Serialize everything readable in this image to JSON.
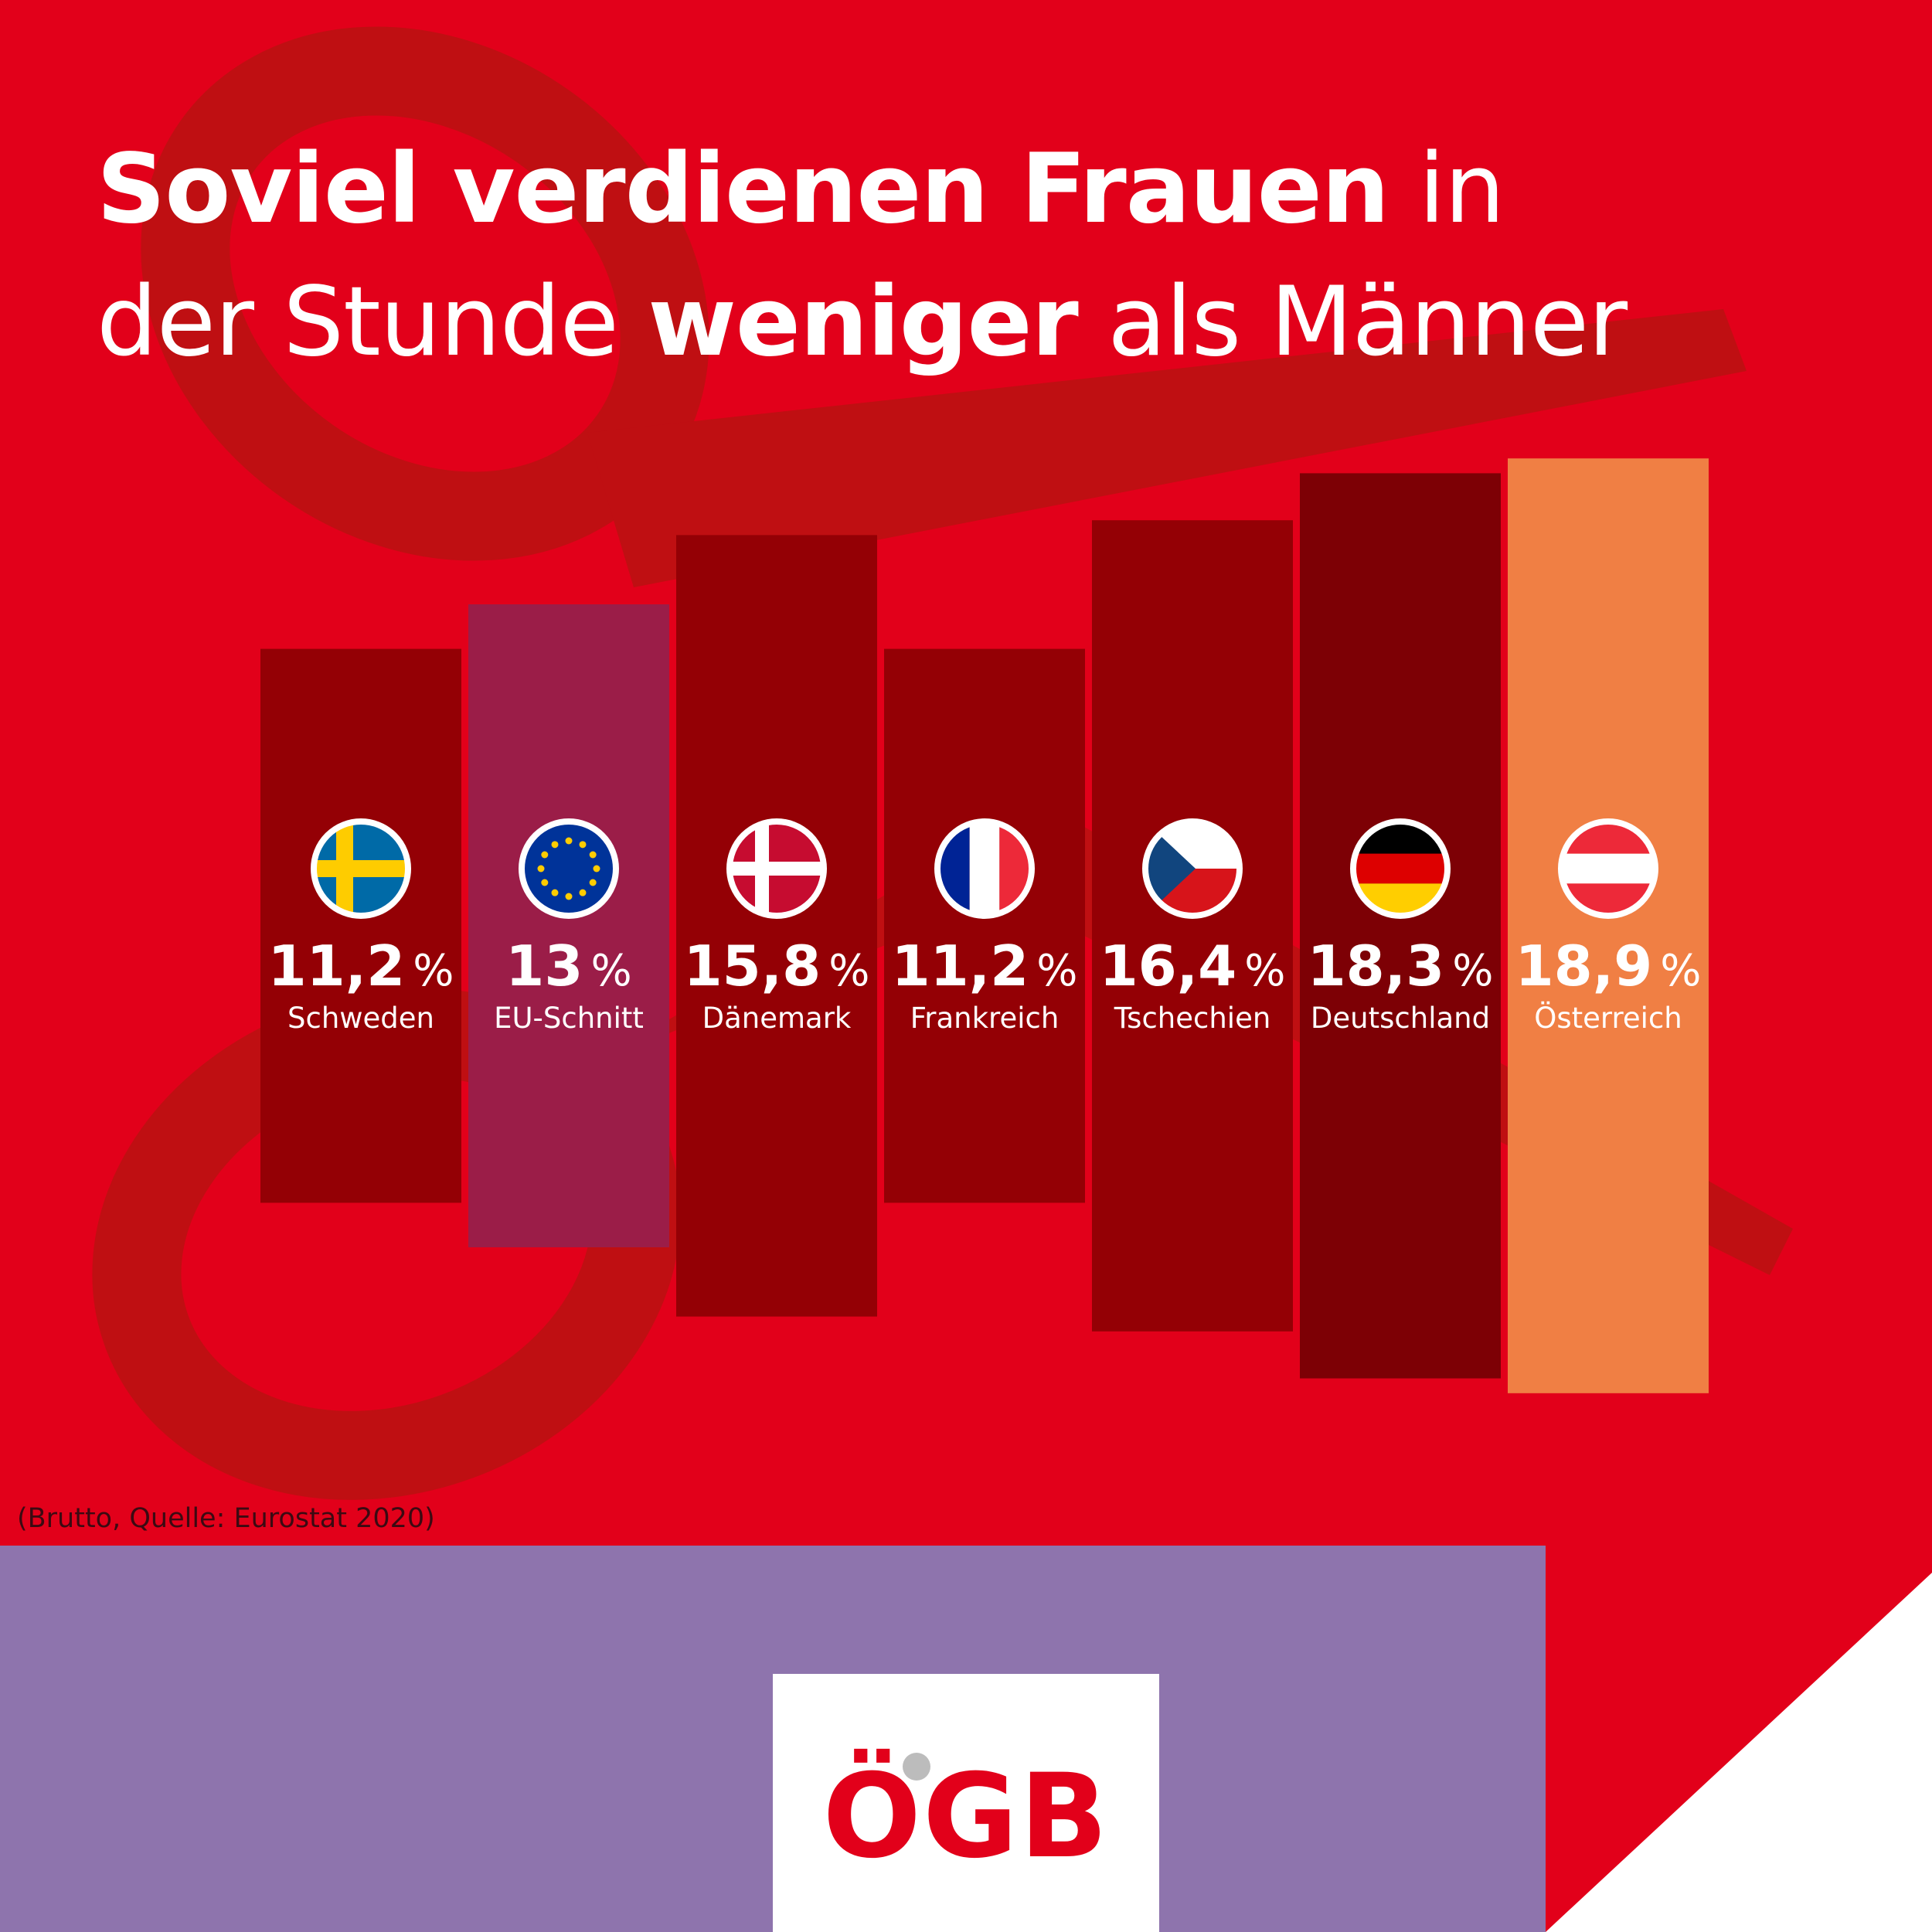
{
  "title": {
    "line1_bold": "Soviel verdienen Frauen",
    "line1_light": "in",
    "line2_light_a": "der Stunde",
    "line2_bold": "weniger",
    "line2_light_b": "als Männer"
  },
  "chart_data": {
    "type": "bar",
    "title": "Soviel verdienen Frauen in der Stunde weniger als Männer",
    "unit": "%",
    "categories": [
      "Schweden",
      "EU-Schnitt",
      "Dänemark",
      "Frankreich",
      "Tschechien",
      "Deutschland",
      "Österreich"
    ],
    "values": [
      11.2,
      13,
      15.8,
      11.2,
      16.4,
      18.3,
      18.9
    ],
    "value_labels": [
      "11,2",
      "13",
      "15,8",
      "11,2",
      "16,4",
      "18,3",
      "18,9"
    ],
    "flags": [
      "sweden-flag",
      "eu-flag",
      "denmark-flag",
      "france-flag",
      "czech-flag",
      "germany-flag",
      "austria-flag"
    ],
    "colors": [
      "#940005",
      "#9b1d48",
      "#940005",
      "#940005",
      "#940005",
      "#7d0005",
      "#f07f44"
    ],
    "grid": false,
    "legend": "none"
  },
  "source": "(Brutto, Quelle: Eurostat 2020)",
  "logo": {
    "text": "ÖGB"
  },
  "colors": {
    "background": "#e2001a",
    "band": "#8e74ad",
    "highlight": "#f07f44"
  }
}
